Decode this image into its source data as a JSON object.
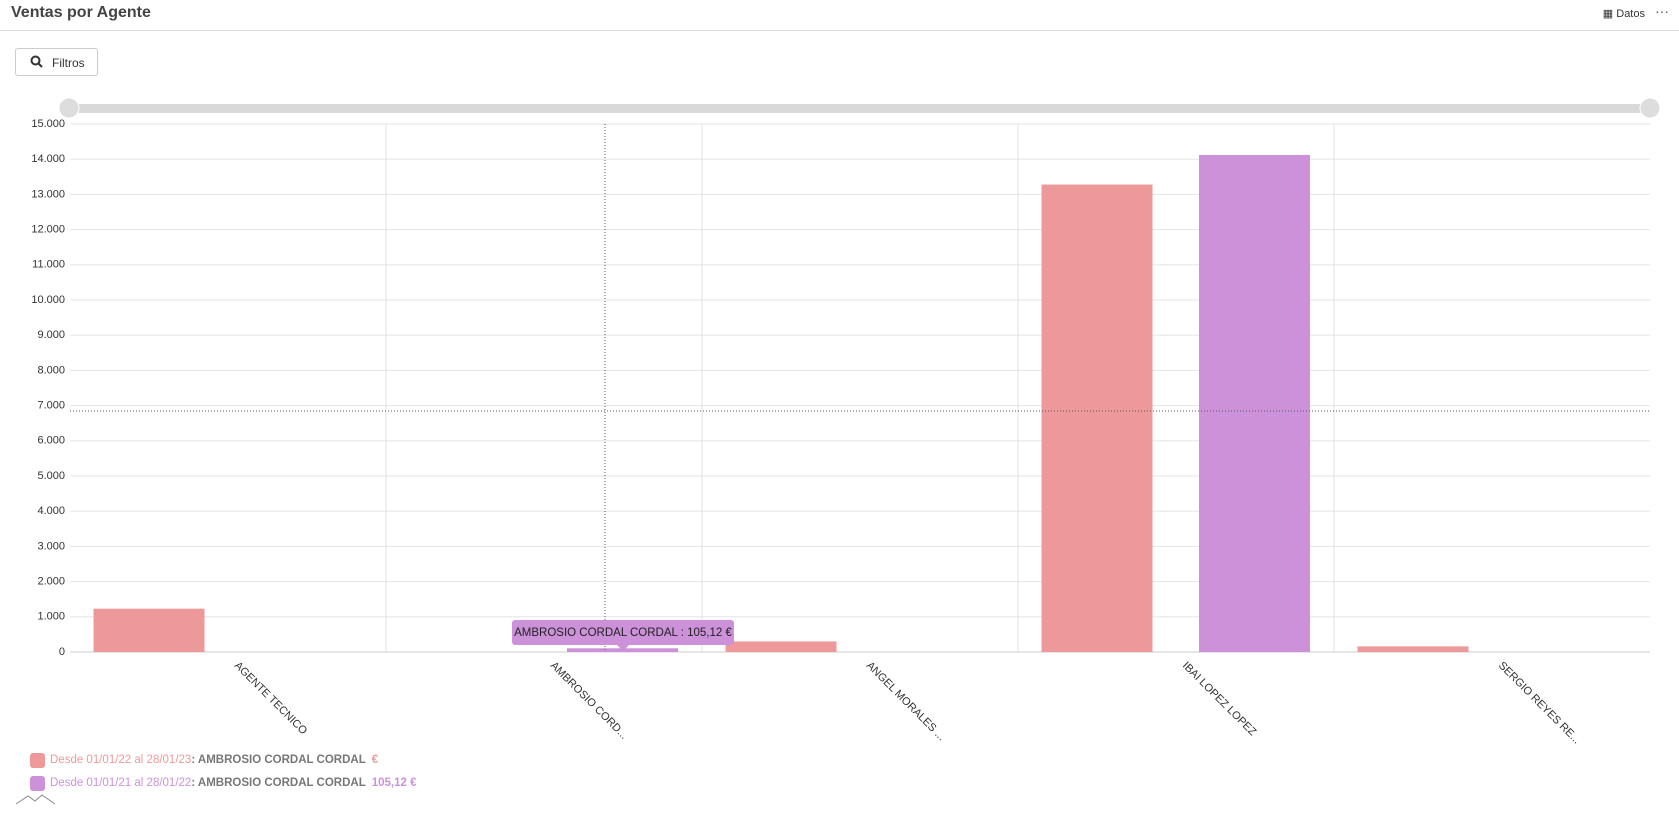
{
  "header": {
    "title": "Ventas por Agente",
    "data_button": "Datos",
    "filter_button": "Filtros"
  },
  "chart_data": {
    "type": "bar",
    "categories": [
      "AGENTE TECNICO",
      "AMBROSIO CORD...",
      "ANGEL MORALES ...",
      "IBAI LOPEZ LOPEZ",
      "SERGIO REYES RE..."
    ],
    "series": [
      {
        "name": "Desde 01/01/22 al 28/01/23",
        "color": "#ee9999",
        "values": [
          1230,
          null,
          300,
          13280,
          160
        ]
      },
      {
        "name": "Desde 01/01/21 al 28/01/22",
        "color": "#cc91d9",
        "values": [
          null,
          105.12,
          null,
          14120,
          null
        ]
      }
    ],
    "ylim": [
      0,
      15000
    ],
    "yticks": [
      0,
      {
        "value": 1000,
        "label": "1.000"
      },
      {
        "value": 2000,
        "label": "2.000"
      },
      {
        "value": 3000,
        "label": "3.000"
      },
      {
        "value": 4000,
        "label": "4.000"
      },
      {
        "value": 5000,
        "label": "5.000"
      },
      {
        "value": 6000,
        "label": "6.000"
      },
      {
        "value": 7000,
        "label": "7.000"
      },
      {
        "value": 8000,
        "label": "8.000"
      },
      {
        "value": 9000,
        "label": "9.000"
      },
      {
        "value": 10000,
        "label": "10.000"
      },
      {
        "value": 11000,
        "label": "11.000"
      },
      {
        "value": 12000,
        "label": "12.000"
      },
      {
        "value": 13000,
        "label": "13.000"
      },
      {
        "value": 14000,
        "label": "14.000"
      },
      {
        "value": 15000,
        "label": "15.000"
      }
    ],
    "grid": true,
    "legend_items": [
      {
        "agent": ": AMBROSIO CORDAL CORDAL",
        "value_label": "€"
      },
      {
        "agent": ": AMBROSIO CORDAL CORDAL",
        "value_label": "105,12 €"
      }
    ],
    "tooltip": "AMBROSIO CORDAL CORDAL : 105,12 €"
  }
}
